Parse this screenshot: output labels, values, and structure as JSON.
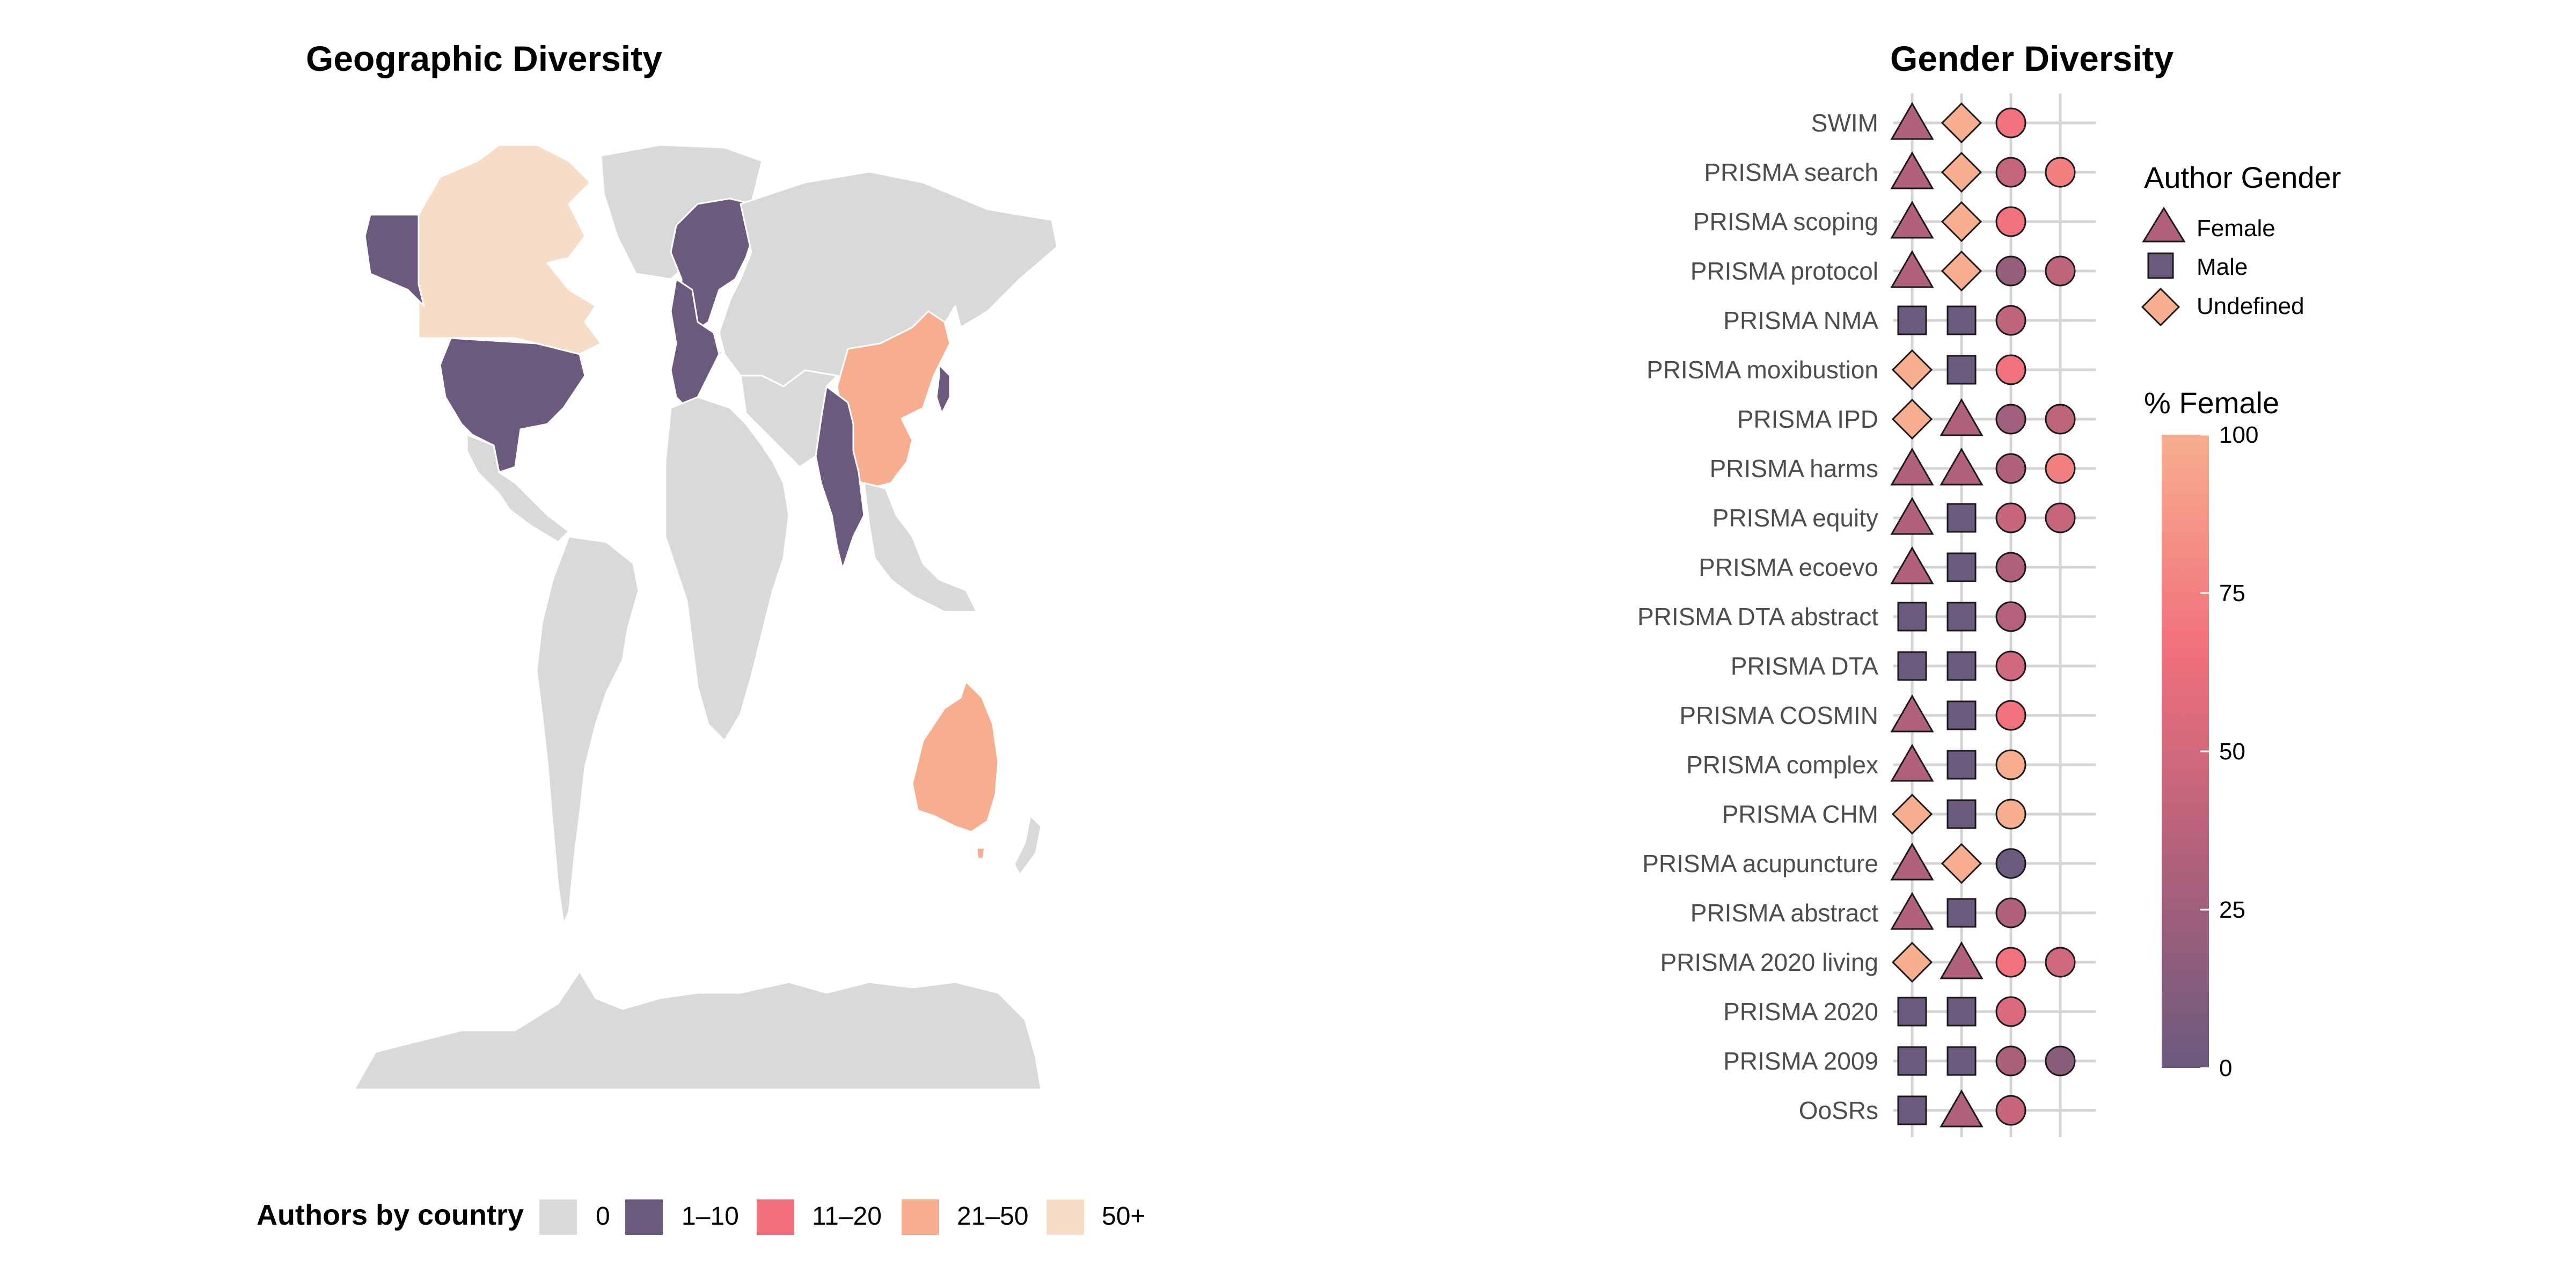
{
  "chart_data": [
    {
      "type": "choropleth-map",
      "title": "Geographic Diversity",
      "legend": {
        "title": "Authors by country",
        "placement": "bottom",
        "items": [
          {
            "label": "0",
            "color": "#d9d9d9"
          },
          {
            "label": "1–10",
            "color": "#6b5a7e"
          },
          {
            "label": "11–20",
            "color": "#f1707c"
          },
          {
            "label": "21–50",
            "color": "#f7ae8f"
          },
          {
            "label": "50+",
            "color": "#f7dcc6"
          }
        ]
      },
      "regions": [
        {
          "name": "Canada",
          "bin": "50+"
        },
        {
          "name": "United States",
          "bin": "1–10"
        },
        {
          "name": "Alaska",
          "bin": "1–10"
        },
        {
          "name": "Europe (selected countries)",
          "bin": "1–10"
        },
        {
          "name": "India",
          "bin": "1–10"
        },
        {
          "name": "Japan",
          "bin": "1–10"
        },
        {
          "name": "China",
          "bin": "21–50"
        },
        {
          "name": "Australia",
          "bin": "21–50"
        }
      ]
    },
    {
      "type": "scatter",
      "title": "Gender Diversity",
      "categories": [
        "SWIM",
        "PRISMA search",
        "PRISMA scoping",
        "PRISMA protocol",
        "PRISMA NMA",
        "PRISMA moxibustion",
        "PRISMA IPD",
        "PRISMA harms",
        "PRISMA equity",
        "PRISMA ecoevo",
        "PRISMA DTA abstract",
        "PRISMA DTA",
        "PRISMA COSMIN",
        "PRISMA complex",
        "PRISMA CHM",
        "PRISMA acupuncture",
        "PRISMA abstract",
        "PRISMA 2020 living",
        "PRISMA 2020",
        "PRISMA 2009",
        "OoSRs"
      ],
      "rows": [
        {
          "label": "SWIM",
          "shapes": [
            "F",
            "U"
          ],
          "pct": [
            67
          ]
        },
        {
          "label": "PRISMA search",
          "shapes": [
            "F",
            "U"
          ],
          "pct": [
            43,
            75
          ]
        },
        {
          "label": "PRISMA scoping",
          "shapes": [
            "F",
            "U"
          ],
          "pct": [
            67
          ]
        },
        {
          "label": "PRISMA protocol",
          "shapes": [
            "F",
            "U"
          ],
          "pct": [
            20,
            40
          ]
        },
        {
          "label": "PRISMA NMA",
          "shapes": [
            "M",
            "M"
          ],
          "pct": [
            40
          ]
        },
        {
          "label": "PRISMA moxibustion",
          "shapes": [
            "U",
            "M"
          ],
          "pct": [
            67
          ]
        },
        {
          "label": "PRISMA IPD",
          "shapes": [
            "U",
            "F"
          ],
          "pct": [
            25,
            40
          ]
        },
        {
          "label": "PRISMA harms",
          "shapes": [
            "F",
            "F"
          ],
          "pct": [
            33,
            75
          ]
        },
        {
          "label": "PRISMA equity",
          "shapes": [
            "F",
            "M"
          ],
          "pct": [
            45,
            45
          ]
        },
        {
          "label": "PRISMA ecoevo",
          "shapes": [
            "F",
            "M"
          ],
          "pct": [
            33
          ]
        },
        {
          "label": "PRISMA DTA abstract",
          "shapes": [
            "M",
            "M"
          ],
          "pct": [
            35
          ]
        },
        {
          "label": "PRISMA DTA",
          "shapes": [
            "M",
            "M"
          ],
          "pct": [
            50
          ]
        },
        {
          "label": "PRISMA COSMIN",
          "shapes": [
            "F",
            "M"
          ],
          "pct": [
            67
          ]
        },
        {
          "label": "PRISMA complex",
          "shapes": [
            "F",
            "M"
          ],
          "pct": [
            100
          ]
        },
        {
          "label": "PRISMA CHM",
          "shapes": [
            "U",
            "M"
          ],
          "pct": [
            100
          ]
        },
        {
          "label": "PRISMA acupuncture",
          "shapes": [
            "F",
            "U"
          ],
          "pct": [
            0
          ]
        },
        {
          "label": "PRISMA abstract",
          "shapes": [
            "F",
            "M"
          ],
          "pct": [
            33
          ]
        },
        {
          "label": "PRISMA 2020 living",
          "shapes": [
            "U",
            "F"
          ],
          "pct": [
            67,
            50
          ]
        },
        {
          "label": "PRISMA 2020",
          "shapes": [
            "M",
            "M"
          ],
          "pct": [
            55
          ]
        },
        {
          "label": "PRISMA 2009",
          "shapes": [
            "M",
            "M"
          ],
          "pct": [
            30,
            15
          ]
        },
        {
          "label": "OoSRs",
          "shapes": [
            "M",
            "F"
          ],
          "pct": [
            45
          ]
        }
      ],
      "shape_legend": {
        "title": "Author Gender",
        "items": [
          {
            "key": "F",
            "label": "Female",
            "color": "#b1617b"
          },
          {
            "key": "M",
            "label": "Male",
            "color": "#6b5a7e"
          },
          {
            "key": "U",
            "label": "Undefined",
            "color": "#f7ae8f"
          }
        ]
      },
      "color_legend": {
        "title": "% Female",
        "range": [
          0,
          100
        ],
        "ticks": [
          "0",
          "25",
          "50",
          "75",
          "100"
        ],
        "stops": [
          "#6b5a7e",
          "#b1617b",
          "#f1707c",
          "#f7ae8f"
        ]
      },
      "grid": true
    }
  ]
}
